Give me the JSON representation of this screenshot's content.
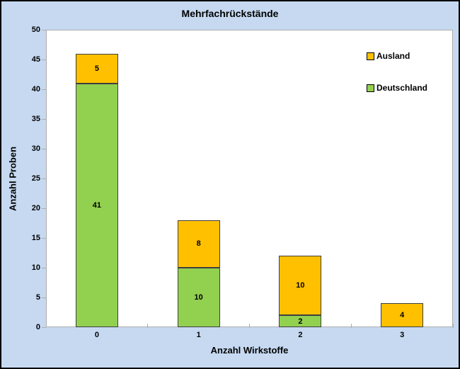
{
  "title": "Mehrfachrückstände",
  "chart_data": {
    "type": "bar",
    "stacked": true,
    "title": "Mehrfachrückstände",
    "xlabel": "Anzahl Wirkstoffe",
    "ylabel": "Anzahl Proben",
    "categories": [
      "0",
      "1",
      "2",
      "3"
    ],
    "series": [
      {
        "name": "Deutschland",
        "color": "#92D050",
        "values": [
          41,
          10,
          2,
          0
        ]
      },
      {
        "name": "Ausland",
        "color": "#FFC000",
        "values": [
          5,
          8,
          10,
          4
        ]
      }
    ],
    "totals": [
      46,
      18,
      12,
      4
    ],
    "ylim": [
      0,
      50
    ],
    "yticks": [
      0,
      5,
      10,
      15,
      20,
      25,
      30,
      35,
      40,
      45,
      50
    ],
    "grid": false,
    "segment_labels_shown": true,
    "legend_position": "top-right"
  },
  "legend": {
    "items": [
      {
        "label": "Ausland",
        "color": "#FFC000"
      },
      {
        "label": "Deutschland",
        "color": "#92D050"
      }
    ]
  },
  "colors": {
    "chart_background": "#C6D9F1",
    "plot_background": "#FFFFFF",
    "plot_border": "#ADADAD",
    "bar_border": "#3F3F3F",
    "outer_border": "#000000",
    "text": "#000000"
  }
}
